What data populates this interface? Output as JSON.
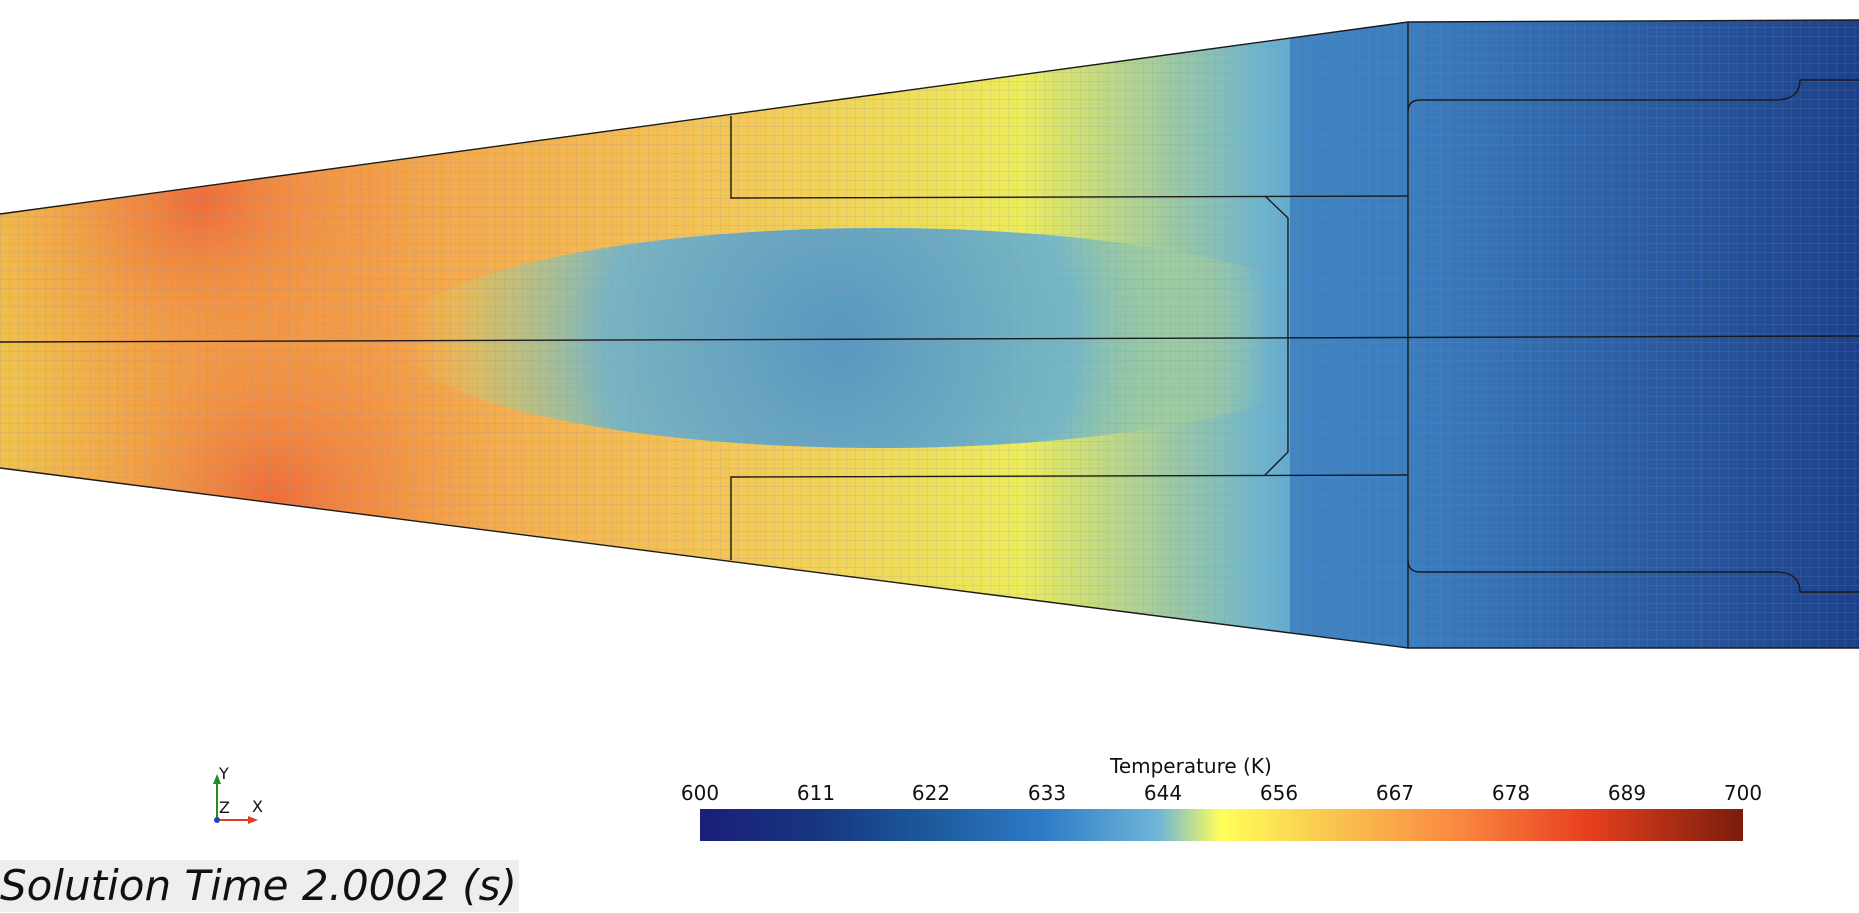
{
  "colorbar": {
    "title": "Temperature (K)",
    "ticks": [
      "600",
      "611",
      "622",
      "633",
      "644",
      "656",
      "667",
      "678",
      "689",
      "700"
    ],
    "stops": [
      "#1a1f7a",
      "#17357f",
      "#1c5a9c",
      "#2f7bc8",
      "#6fb6d6",
      "#ffff5a",
      "#f9c34f",
      "#fb8c42",
      "#e7401f",
      "#7a1d0c"
    ]
  },
  "axes_triad": {
    "y": "Y",
    "z": "Z",
    "x": "X",
    "x_color": "#e04020",
    "y_color": "#228b22"
  },
  "solution_time": "Solution Time 2.0002 (s)",
  "field_colors": {
    "hot": "#f07040",
    "warm": "#f4a24a",
    "yellow": "#ecec5c",
    "cyan": "#6cb4cf",
    "mid_blue": "#3f82c2",
    "dark_blue": "#1a3f86"
  }
}
